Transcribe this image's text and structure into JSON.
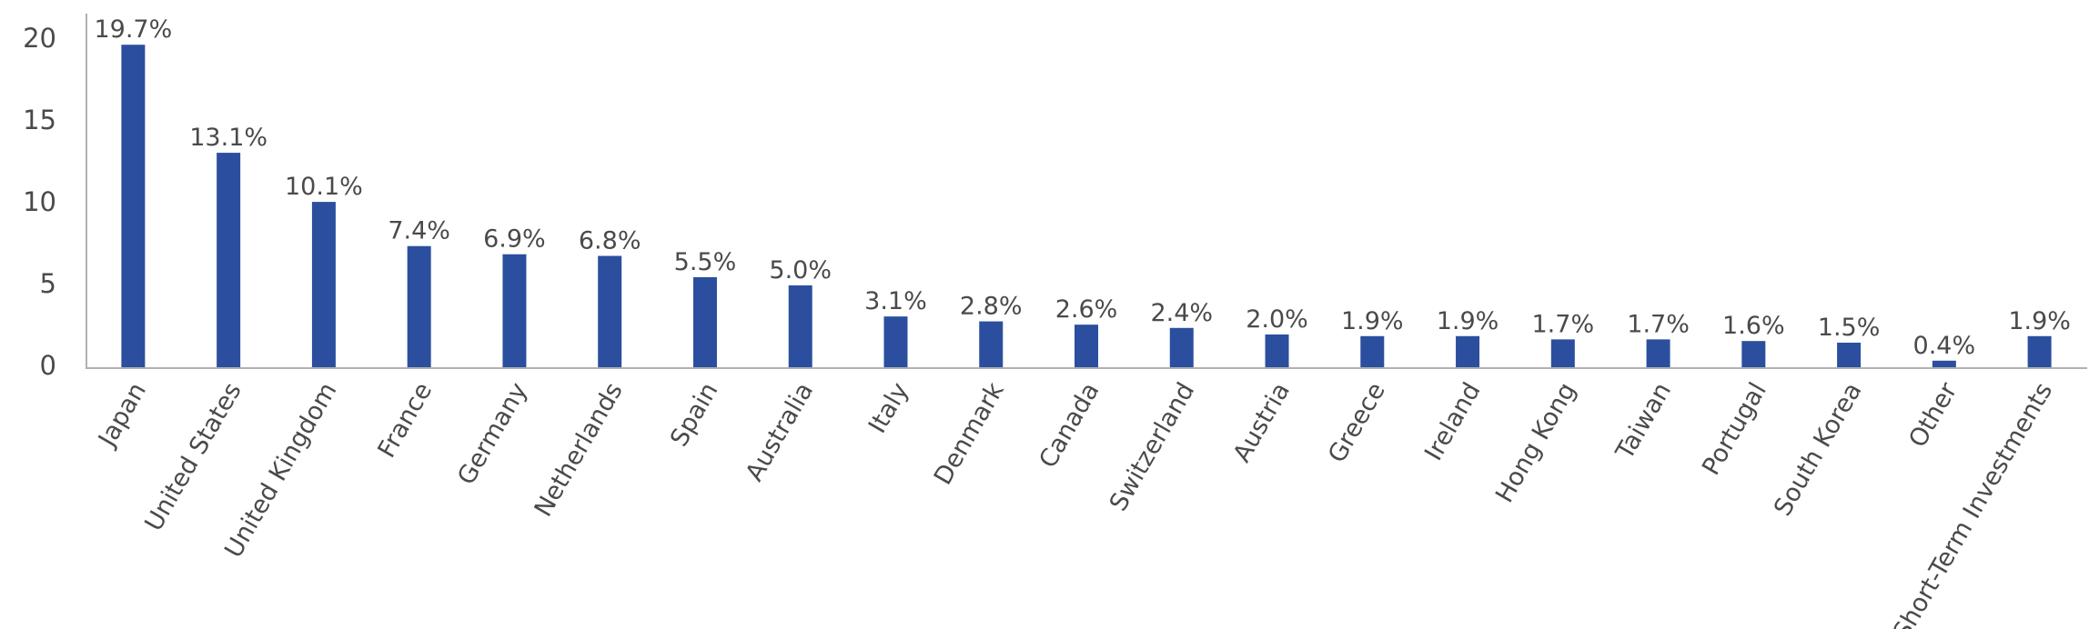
{
  "chart_data": {
    "type": "bar",
    "categories": [
      "Japan",
      "United States",
      "United Kingdom",
      "France",
      "Germany",
      "Netherlands",
      "Spain",
      "Australia",
      "Italy",
      "Denmark",
      "Canada",
      "Switzerland",
      "Austria",
      "Greece",
      "Ireland",
      "Hong Kong",
      "Taiwan",
      "Portugal",
      "South Korea",
      "Other",
      "Short-Term Investments"
    ],
    "values": [
      19.7,
      13.1,
      10.1,
      7.4,
      6.9,
      6.8,
      5.5,
      5.0,
      3.1,
      2.8,
      2.6,
      2.4,
      2.0,
      1.9,
      1.9,
      1.7,
      1.7,
      1.6,
      1.5,
      0.4,
      1.9
    ],
    "value_labels": [
      "19.7%",
      "13.1%",
      "10.1%",
      "7.4%",
      "6.9%",
      "6.8%",
      "5.5%",
      "5.0%",
      "3.1%",
      "2.8%",
      "2.6%",
      "2.4%",
      "2.0%",
      "1.9%",
      "1.9%",
      "1.7%",
      "1.7%",
      "1.6%",
      "1.5%",
      "0.4%",
      "1.9%"
    ],
    "color": "#2b4f9e",
    "ylim": [
      0,
      21.6
    ],
    "yticks": [
      0,
      5,
      10,
      15,
      20
    ],
    "grid": false
  }
}
